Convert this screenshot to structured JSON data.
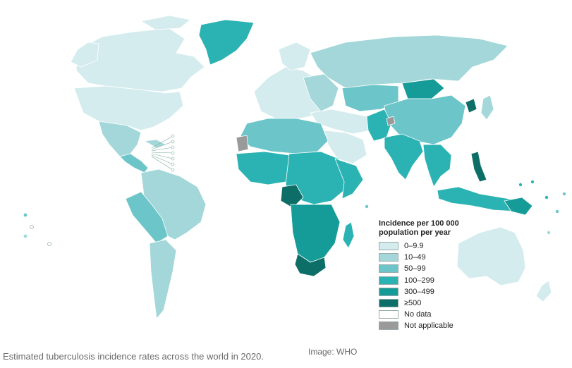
{
  "map": {
    "subject": "Estimated tuberculosis incidence rates by country, 2020",
    "category_colors": {
      "0-9.9": "#d5ecee",
      "10-49": "#a3d7d9",
      "50-99": "#6cc5c8",
      "100-299": "#2bb3b3",
      "300-499": "#169c98",
      ">=500": "#0d6e68",
      "no_data": "#ffffff",
      "not_applicable": "#9a9a9a"
    },
    "ocean_color": "#ffffff",
    "border_color": "#ffffff"
  },
  "legend": {
    "title_line1": "Incidence per 100 000",
    "title_line2": "population per year",
    "items": [
      {
        "label": "0–9.9",
        "color": "#d5ecee"
      },
      {
        "label": "10–49",
        "color": "#a3d7d9"
      },
      {
        "label": "50–99",
        "color": "#6cc5c8"
      },
      {
        "label": "100–299",
        "color": "#2bb3b3"
      },
      {
        "label": "300–499",
        "color": "#169c98"
      },
      {
        "label": "≥500",
        "color": "#0d6e68"
      },
      {
        "label": "No data",
        "color": "#ffffff"
      },
      {
        "label": "Not applicable",
        "color": "#9a9a9a"
      }
    ]
  },
  "caption": "Estimated tuberculosis incidence rates across the world in 2020.",
  "credit": "Image: WHO"
}
